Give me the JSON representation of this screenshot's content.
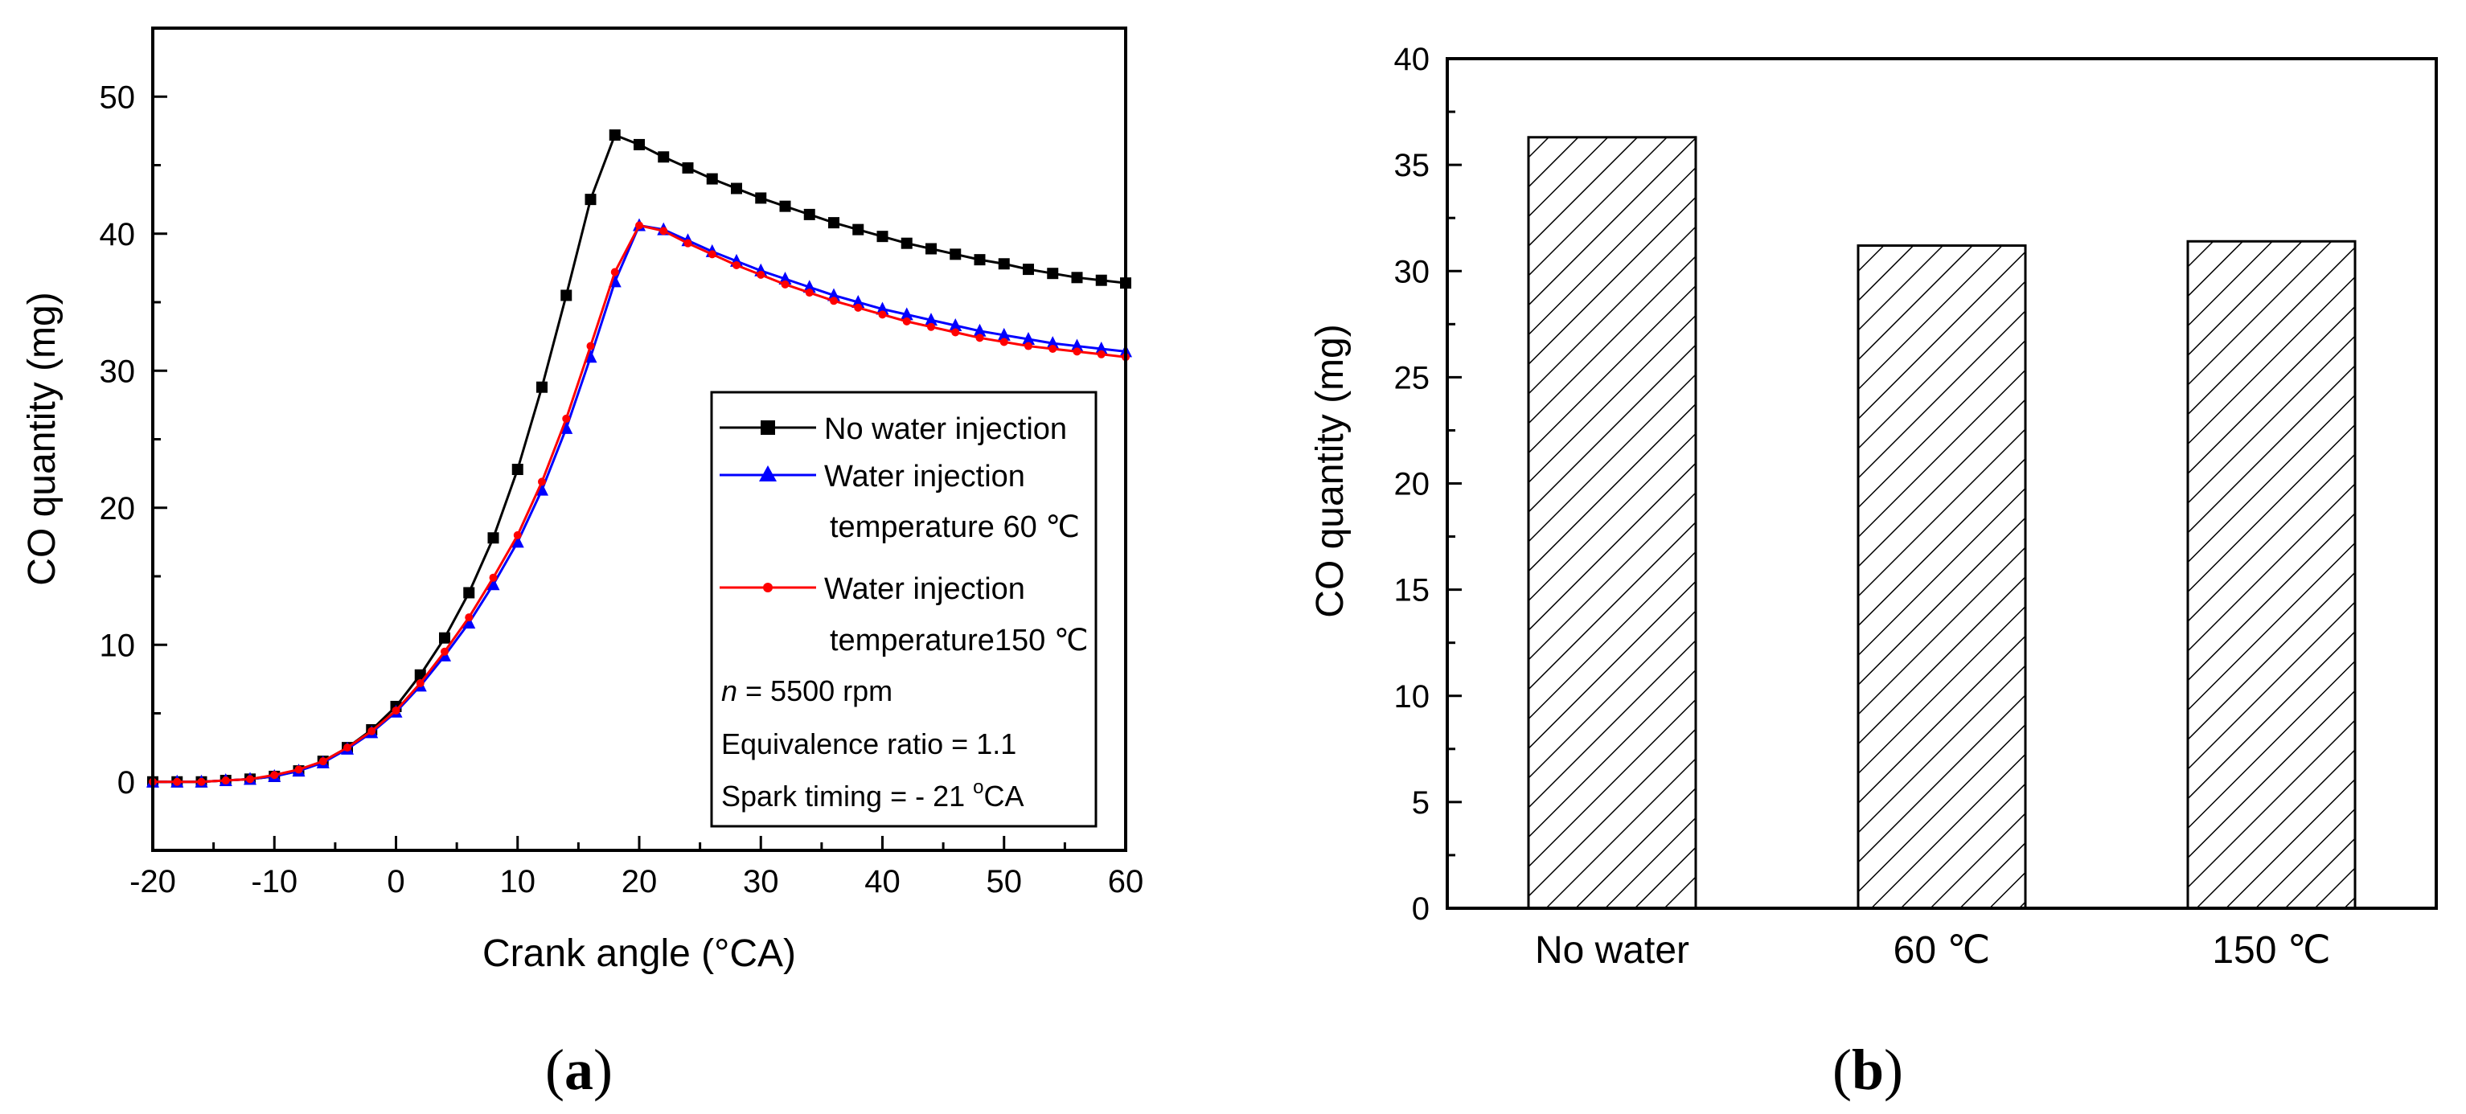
{
  "colors": {
    "axis": "#000000",
    "no_water": "#000000",
    "wi_60": "#0000ff",
    "wi_150": "#ff0000",
    "bar_fill": "#ffffff",
    "hatch": "#000000"
  },
  "panels": {
    "a_label": "a",
    "b_label": "b"
  },
  "legend_a": {
    "entries": [
      {
        "line1": "No water injection",
        "line2": ""
      },
      {
        "line1": "Water injection",
        "line2": "temperature 60 ℃"
      },
      {
        "line1": "Water injection",
        "line2": "temperature150 ℃"
      }
    ],
    "notes": {
      "rpm_var": "n",
      "rpm_rest": " = 5500 rpm",
      "equivalence": "Equivalence ratio = 1.1",
      "spark_prefix": "Spark timing = - 21 ",
      "spark_sup": "o",
      "spark_unit": "CA"
    }
  },
  "chart_data": [
    {
      "type": "line",
      "title": "",
      "xlabel": "Crank angle (°CA)",
      "ylabel": "CO quantity (mg)",
      "xlim": [
        -20,
        60
      ],
      "ylim": [
        -5,
        55
      ],
      "xticks": [
        -20,
        -10,
        0,
        10,
        20,
        30,
        40,
        50,
        60
      ],
      "yticks": [
        0,
        10,
        20,
        30,
        40,
        50
      ],
      "x": [
        -20,
        -18,
        -16,
        -14,
        -12,
        -10,
        -8,
        -6,
        -4,
        -2,
        0,
        2,
        4,
        6,
        8,
        10,
        12,
        14,
        16,
        18,
        20,
        22,
        24,
        26,
        28,
        30,
        32,
        34,
        36,
        38,
        40,
        42,
        44,
        46,
        48,
        50,
        52,
        54,
        56,
        58,
        60
      ],
      "series": [
        {
          "name": "No water injection",
          "marker": "square",
          "values": [
            0,
            0,
            0,
            0.1,
            0.2,
            0.4,
            0.8,
            1.5,
            2.5,
            3.8,
            5.5,
            7.8,
            10.5,
            13.8,
            17.8,
            22.8,
            28.8,
            35.5,
            42.5,
            47.2,
            46.5,
            45.6,
            44.8,
            44.0,
            43.3,
            42.6,
            42.0,
            41.4,
            40.8,
            40.3,
            39.8,
            39.3,
            38.9,
            38.5,
            38.1,
            37.8,
            37.4,
            37.1,
            36.8,
            36.6,
            36.4
          ]
        },
        {
          "name": "Water injection temperature 60 ℃",
          "marker": "triangle",
          "values": [
            0,
            0,
            0,
            0.1,
            0.2,
            0.4,
            0.8,
            1.4,
            2.4,
            3.6,
            5.1,
            7.0,
            9.2,
            11.6,
            14.4,
            17.5,
            21.3,
            25.8,
            31.0,
            36.5,
            40.6,
            40.3,
            39.5,
            38.7,
            38.0,
            37.3,
            36.7,
            36.1,
            35.5,
            35.0,
            34.5,
            34.1,
            33.7,
            33.3,
            32.9,
            32.6,
            32.3,
            32.0,
            31.8,
            31.6,
            31.4
          ]
        },
        {
          "name": "Water injection temperature150 ℃",
          "marker": "dot",
          "values": [
            0,
            0,
            0,
            0.1,
            0.2,
            0.5,
            0.9,
            1.5,
            2.5,
            3.7,
            5.2,
            7.2,
            9.5,
            12.0,
            14.9,
            18.0,
            21.9,
            26.5,
            31.8,
            37.2,
            40.6,
            40.2,
            39.3,
            38.5,
            37.7,
            37.0,
            36.3,
            35.7,
            35.1,
            34.6,
            34.1,
            33.6,
            33.2,
            32.8,
            32.4,
            32.1,
            31.8,
            31.6,
            31.4,
            31.2,
            31.0
          ]
        }
      ]
    },
    {
      "type": "bar",
      "title": "",
      "xlabel": "",
      "ylabel": "CO quantity  (mg)",
      "ylim": [
        0,
        40
      ],
      "yticks": [
        0,
        5,
        10,
        15,
        20,
        25,
        30,
        35,
        40
      ],
      "categories": [
        "No water",
        "60 ℃",
        "150 ℃"
      ],
      "values": [
        36.3,
        31.2,
        31.4
      ]
    }
  ]
}
